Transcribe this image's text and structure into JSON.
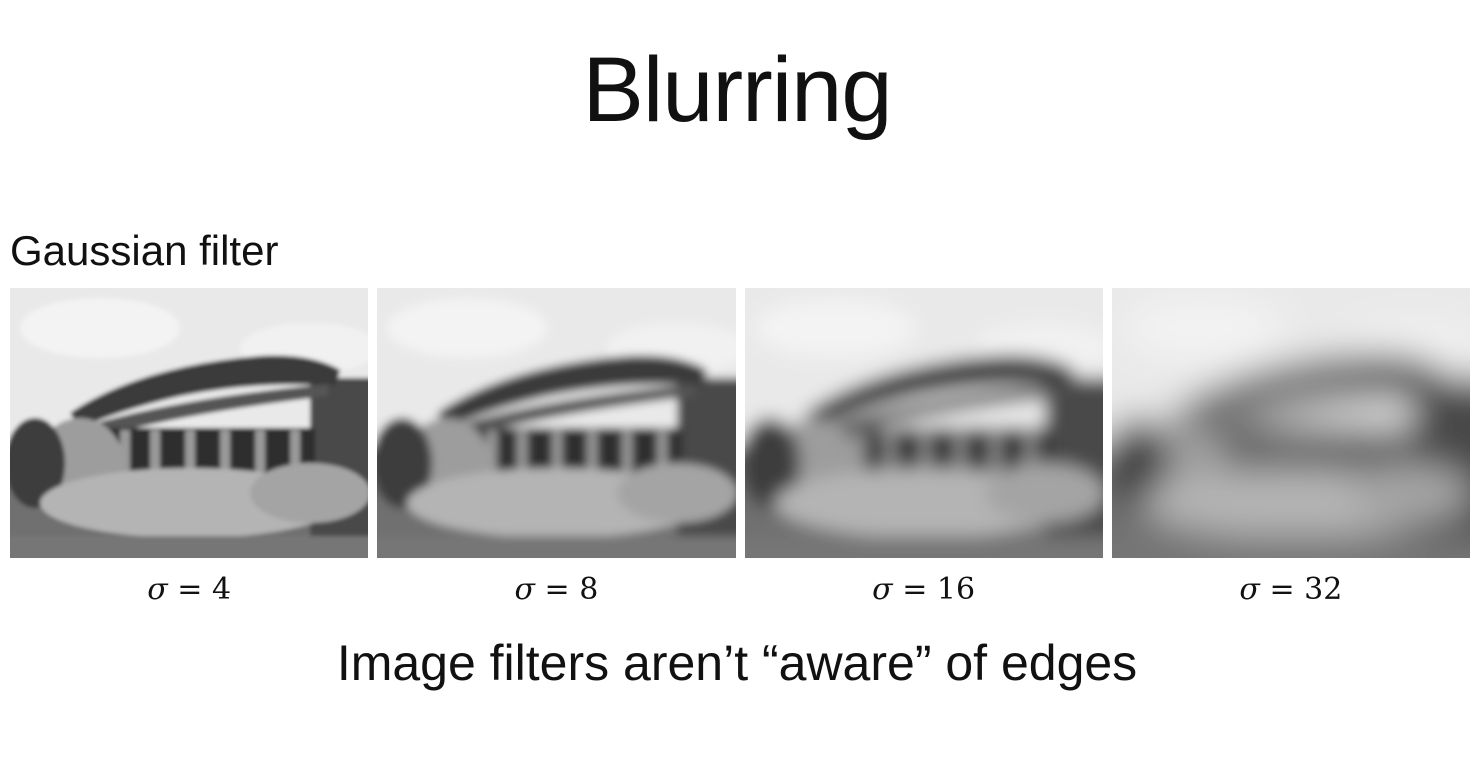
{
  "title": "Blurring",
  "section_label": "Gaussian filter",
  "panels": [
    {
      "symbol": "σ",
      "relation": "=",
      "value": "4",
      "sigma": 4
    },
    {
      "symbol": "σ",
      "relation": "=",
      "value": "8",
      "sigma": 8
    },
    {
      "symbol": "σ",
      "relation": "=",
      "value": "16",
      "sigma": 16
    },
    {
      "symbol": "σ",
      "relation": "=",
      "value": "32",
      "sigma": 32
    }
  ],
  "footer": "Image filters aren’t “aware” of edges"
}
